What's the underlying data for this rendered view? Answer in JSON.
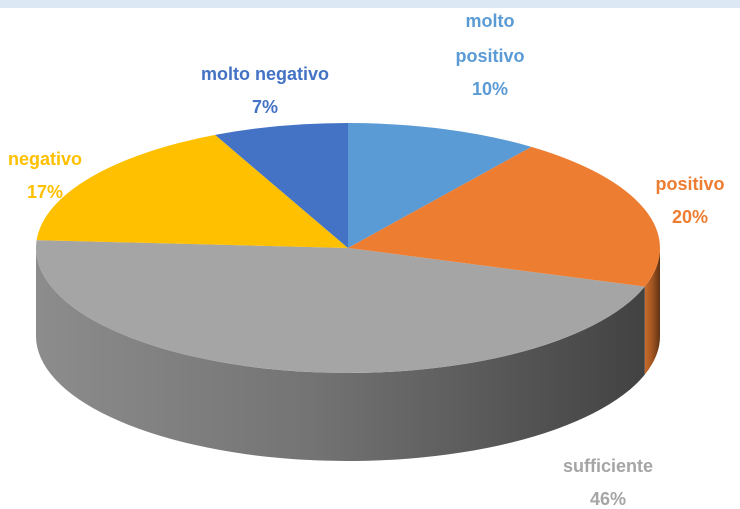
{
  "chart_data": {
    "type": "pie",
    "categories": [
      "molto positivo",
      "positivo",
      "sufficiente",
      "negativo",
      "molto negativo"
    ],
    "values": [
      10,
      20,
      46,
      17,
      7
    ],
    "value_labels": [
      "10%",
      "20%",
      "46%",
      "17%",
      "7%"
    ],
    "colors": [
      "#5b9bd5",
      "#ed7d31",
      "#a5a5a5",
      "#ffc000",
      "#4472c4"
    ]
  }
}
